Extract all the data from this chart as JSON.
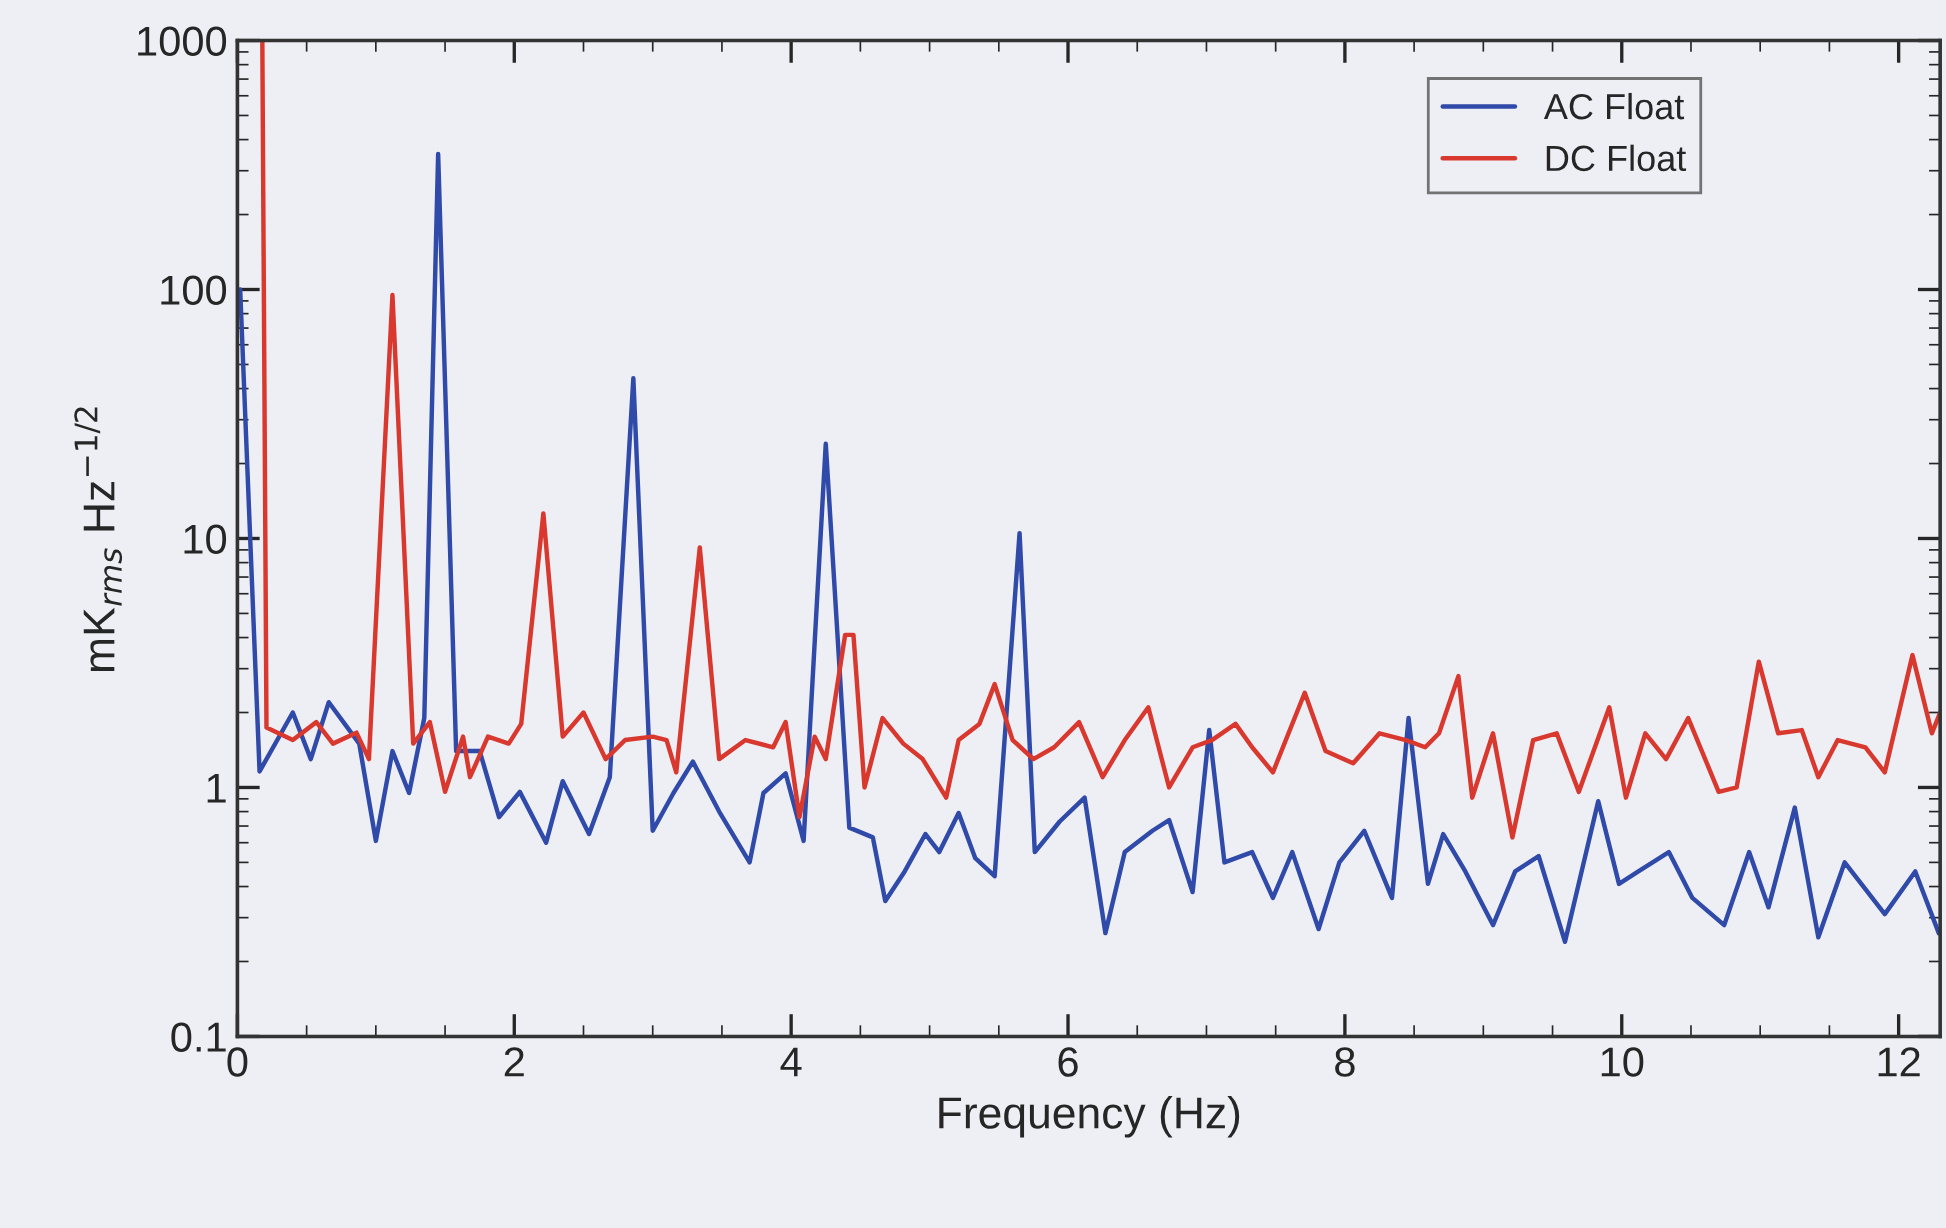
{
  "chart_data": {
    "type": "line",
    "xlabel": "Frequency (Hz)",
    "ylabel": "mK$_{rms}$ Hz$^{−1/2}$",
    "log": "y",
    "grid": false,
    "legend": "top right",
    "marker": "none",
    "line_style": "solid",
    "xlim": [
      0,
      12.3
    ],
    "xticks": [
      0,
      2,
      4,
      6,
      8,
      10,
      12
    ],
    "ylim": [
      0.1,
      1000
    ],
    "yticks": [
      0.1,
      1,
      10,
      100,
      1000
    ],
    "series": [
      {
        "name": "AC Float",
        "color": "#2f4aa8",
        "x": [
          0.02,
          0.16,
          0.4,
          0.53,
          0.66,
          0.88,
          1.0,
          1.12,
          1.24,
          1.35,
          1.45,
          1.58,
          1.75,
          1.89,
          2.04,
          2.23,
          2.35,
          2.54,
          2.69,
          2.86,
          3.0,
          3.15,
          3.29,
          3.48,
          3.7,
          3.8,
          3.96,
          4.09,
          4.25,
          4.42,
          4.59,
          4.68,
          4.82,
          4.97,
          5.07,
          5.21,
          5.33,
          5.47,
          5.65,
          5.76,
          5.94,
          6.12,
          6.27,
          6.41,
          6.61,
          6.73,
          6.9,
          7.02,
          7.13,
          7.33,
          7.48,
          7.62,
          7.81,
          7.96,
          8.14,
          8.34,
          8.46,
          8.6,
          8.71,
          8.87,
          9.07,
          9.23,
          9.4,
          9.59,
          9.83,
          9.98,
          10.12,
          10.34,
          10.51,
          10.74,
          10.92,
          11.06,
          11.25,
          11.42,
          11.61,
          11.9,
          12.12,
          12.29
        ],
        "values": [
          100,
          1.16,
          2.0,
          1.3,
          2.2,
          1.5,
          0.61,
          1.4,
          0.95,
          1.9,
          350,
          1.4,
          1.4,
          0.76,
          0.96,
          0.6,
          1.06,
          0.65,
          1.1,
          44,
          0.67,
          0.95,
          1.27,
          0.8,
          0.5,
          0.95,
          1.14,
          0.61,
          24,
          0.69,
          0.63,
          0.35,
          0.46,
          0.65,
          0.55,
          0.79,
          0.52,
          0.44,
          10.5,
          0.55,
          0.73,
          0.91,
          0.26,
          0.55,
          0.67,
          0.74,
          0.38,
          1.7,
          0.5,
          0.55,
          0.36,
          0.55,
          0.27,
          0.5,
          0.67,
          0.36,
          1.9,
          0.41,
          0.65,
          0.46,
          0.28,
          0.46,
          0.53,
          0.24,
          0.88,
          0.41,
          0.46,
          0.55,
          0.36,
          0.28,
          0.55,
          0.33,
          0.83,
          0.25,
          0.5,
          0.31,
          0.46,
          0.26
        ]
      },
      {
        "name": "DC Float",
        "color": "#d9382e",
        "x": [
          0.18,
          0.21,
          0.4,
          0.57,
          0.69,
          0.86,
          0.95,
          1.12,
          1.27,
          1.39,
          1.5,
          1.63,
          1.68,
          1.81,
          1.96,
          2.05,
          2.21,
          2.35,
          2.5,
          2.66,
          2.8,
          3.0,
          3.1,
          3.17,
          3.34,
          3.48,
          3.67,
          3.87,
          3.96,
          4.06,
          4.17,
          4.25,
          4.39,
          4.45,
          4.53,
          4.66,
          4.81,
          4.95,
          5.12,
          5.21,
          5.36,
          5.47,
          5.6,
          5.75,
          5.9,
          6.08,
          6.25,
          6.41,
          6.58,
          6.73,
          6.9,
          7.04,
          7.21,
          7.33,
          7.48,
          7.71,
          7.86,
          8.06,
          8.25,
          8.44,
          8.58,
          8.68,
          8.82,
          8.92,
          9.07,
          9.21,
          9.36,
          9.53,
          9.69,
          9.91,
          10.03,
          10.17,
          10.32,
          10.48,
          10.7,
          10.83,
          10.99,
          11.13,
          11.3,
          11.42,
          11.56,
          11.76,
          11.9,
          12.1,
          12.24,
          12.3
        ],
        "values": [
          1000,
          1.74,
          1.55,
          1.83,
          1.5,
          1.66,
          1.3,
          95,
          1.5,
          1.83,
          0.96,
          1.6,
          1.1,
          1.6,
          1.5,
          1.8,
          12.6,
          1.6,
          2.0,
          1.3,
          1.55,
          1.6,
          1.55,
          1.15,
          9.2,
          1.3,
          1.55,
          1.45,
          1.83,
          0.76,
          1.6,
          1.3,
          4.1,
          4.1,
          1.0,
          1.9,
          1.5,
          1.3,
          0.91,
          1.55,
          1.8,
          2.6,
          1.55,
          1.3,
          1.45,
          1.83,
          1.1,
          1.55,
          2.1,
          1.0,
          1.45,
          1.55,
          1.8,
          1.45,
          1.15,
          2.4,
          1.4,
          1.25,
          1.65,
          1.55,
          1.45,
          1.65,
          2.8,
          0.91,
          1.65,
          0.63,
          1.55,
          1.65,
          0.96,
          2.1,
          0.91,
          1.65,
          1.3,
          1.9,
          0.96,
          1.0,
          3.2,
          1.65,
          1.7,
          1.1,
          1.55,
          1.45,
          1.15,
          3.4,
          1.65,
          2.0
        ]
      }
    ]
  }
}
